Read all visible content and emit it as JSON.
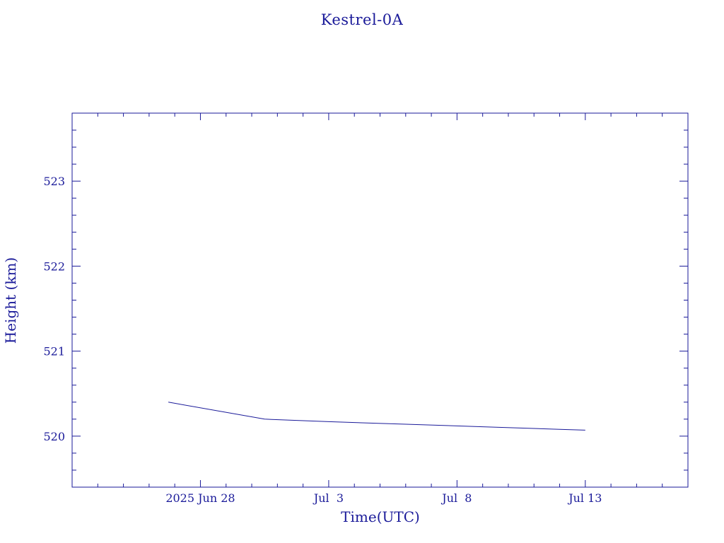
{
  "colors": {
    "axis": "#1a1a99",
    "line": "#1a1a99",
    "background": "#ffffff"
  },
  "chart_data": {
    "type": "line",
    "title": "Kestrel-0A",
    "xlabel": "Time(UTC)",
    "ylabel": "Height (km)",
    "x_tick_labels": [
      "2025 Jun 28",
      "Jul  3",
      "Jul  8",
      "Jul 13"
    ],
    "y_tick_labels": [
      "520",
      "521",
      "522",
      "523"
    ],
    "xlim": [
      "2025-06-23",
      "2025-07-17"
    ],
    "ylim": [
      519.4,
      523.8
    ],
    "grid": false,
    "series": [
      {
        "x": [
          "2025-06-26T18:00",
          "2025-06-30T12:00",
          "2025-07-03T00:00",
          "2025-07-06T00:00",
          "2025-07-09T00:00",
          "2025-07-12T00:00",
          "2025-07-13T00:00"
        ],
        "y": [
          520.4,
          520.2,
          520.17,
          520.14,
          520.11,
          520.08,
          520.07
        ]
      }
    ]
  }
}
